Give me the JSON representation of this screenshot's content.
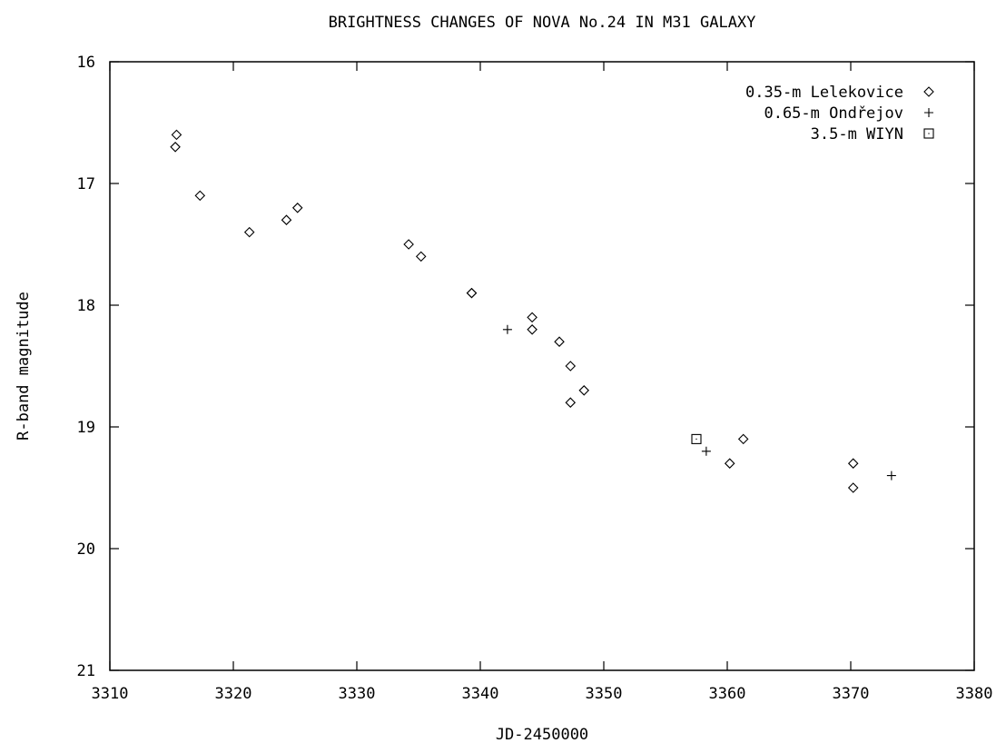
{
  "chart_data": {
    "type": "scatter",
    "title": "BRIGHTNESS CHANGES OF NOVA No.24 IN M31 GALAXY",
    "xlabel": "JD-2450000",
    "ylabel": "R-band magnitude",
    "xlim": [
      3310,
      3380
    ],
    "ylim": [
      16,
      21
    ],
    "y_inverted": true,
    "xticks": [
      "3310",
      "3320",
      "3330",
      "3340",
      "3350",
      "3360",
      "3370",
      "3380"
    ],
    "yticks": [
      "16",
      "17",
      "18",
      "19",
      "20",
      "21"
    ],
    "legend_position": "top-right",
    "grid": false,
    "series": [
      {
        "name": "0.35-m Lelekovice",
        "marker": "diamond",
        "x": [
          3315.4,
          3315.3,
          3317.3,
          3321.3,
          3324.3,
          3325.2,
          3334.2,
          3335.2,
          3339.3,
          3339.3,
          3344.2,
          3344.2,
          3346.4,
          3347.3,
          3347.3,
          3348.4,
          3360.2,
          3361.3,
          3370.2,
          3370.2
        ],
        "y": [
          16.6,
          16.7,
          17.1,
          17.4,
          17.3,
          17.2,
          17.5,
          17.6,
          17.9,
          17.9,
          18.1,
          18.2,
          18.3,
          18.5,
          18.8,
          18.7,
          19.3,
          19.1,
          19.3,
          19.5
        ]
      },
      {
        "name": "0.65-m Ondřejov",
        "marker": "plus",
        "x": [
          3342.2,
          3358.3,
          3373.3
        ],
        "y": [
          18.2,
          19.2,
          19.4
        ]
      },
      {
        "name": "3.5-m WIYN",
        "marker": "square",
        "x": [
          3357.5
        ],
        "y": [
          19.1
        ]
      }
    ]
  }
}
